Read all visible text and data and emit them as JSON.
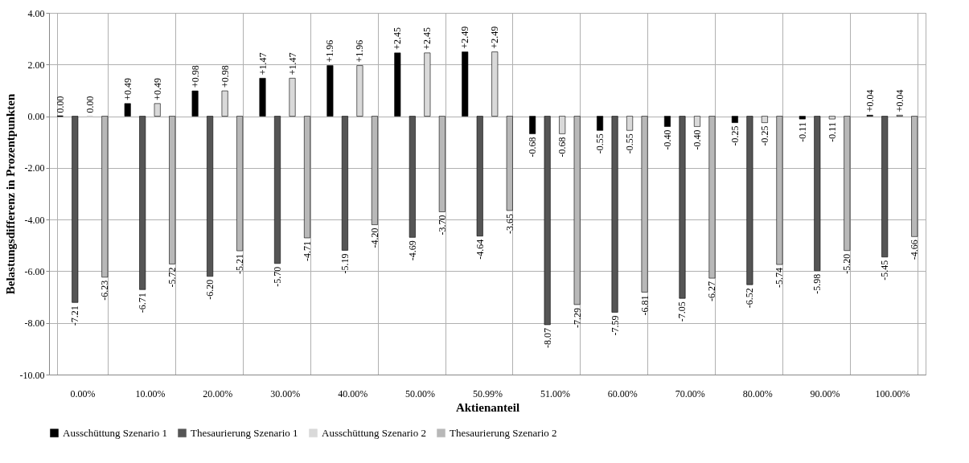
{
  "chart_data": {
    "type": "bar",
    "xlabel": "Aktienanteil",
    "ylabel": "Belastungsdifferenz in Prozentpunkten",
    "categories": [
      "0.00%",
      "10.00%",
      "20.00%",
      "30.00%",
      "40.00%",
      "50.00%",
      "50.99%",
      "51.00%",
      "60.00%",
      "70.00%",
      "80.00%",
      "90.00%",
      "100.00%"
    ],
    "series": [
      {
        "name": "Ausschüttung Szenario 1",
        "color": "#000000",
        "values": [
          0.0,
          0.49,
          0.98,
          1.47,
          1.96,
          2.45,
          2.49,
          -0.68,
          -0.55,
          -0.4,
          -0.25,
          -0.11,
          0.04
        ],
        "value_labels": [
          "0.00",
          "+0.49",
          "+0.98",
          "+1.47",
          "+1.96",
          "+2.45",
          "+2.49",
          "-0.68",
          "-0.55",
          "-0.40",
          "-0.25",
          "-0.11",
          "+0.04"
        ]
      },
      {
        "name": "Thesaurierung Szenario 1",
        "color": "#555555",
        "values": [
          -7.21,
          -6.71,
          -6.2,
          -5.7,
          -5.19,
          -4.69,
          -4.64,
          -8.07,
          -7.59,
          -7.05,
          -6.52,
          -5.98,
          -5.45
        ],
        "value_labels": [
          "-7.21",
          "-6.71",
          "-6.20",
          "-5.70",
          "-5.19",
          "-4.69",
          "-4.64",
          "-8.07",
          "-7.59",
          "-7.05",
          "-6.52",
          "-5.98",
          "-5.45"
        ]
      },
      {
        "name": "Ausschüttung Szenario 2",
        "color": "#d9d9d9",
        "values": [
          0.0,
          0.49,
          0.98,
          1.47,
          1.96,
          2.45,
          2.49,
          -0.68,
          -0.55,
          -0.4,
          -0.25,
          -0.11,
          0.04
        ],
        "value_labels": [
          "0.00",
          "+0.49",
          "+0.98",
          "+1.47",
          "+1.96",
          "+2.45",
          "+2.49",
          "-0.68",
          "-0.55",
          "-0.40",
          "-0.25",
          "-0.11",
          "+0.04"
        ]
      },
      {
        "name": "Thesaurierung Szenario 2",
        "color": "#b8b8b8",
        "values": [
          -6.23,
          -5.72,
          -5.21,
          -4.71,
          -4.2,
          -3.7,
          -3.65,
          -7.29,
          -6.81,
          -6.27,
          -5.74,
          -5.2,
          -4.66
        ],
        "value_labels": [
          "-6.23",
          "-5.72",
          "-5.21",
          "-4.71",
          "-4.20",
          "-3.70",
          "-3.65",
          "-7.29",
          "-6.81",
          "-6.27",
          "-5.74",
          "-5.20",
          "-4.66"
        ]
      }
    ],
    "ylim": [
      -10,
      4
    ],
    "yticks": [
      {
        "value": -10,
        "label": "-10.00"
      },
      {
        "value": -8,
        "label": "-8.00"
      },
      {
        "value": -6,
        "label": "-6.00"
      },
      {
        "value": -4,
        "label": "-4.00"
      },
      {
        "value": -2,
        "label": "-2.00"
      },
      {
        "value": 0,
        "label": "0.00"
      },
      {
        "value": 2,
        "label": "2.00"
      },
      {
        "value": 4,
        "label": "4.00"
      }
    ],
    "grid": true,
    "legend": "bottom"
  }
}
